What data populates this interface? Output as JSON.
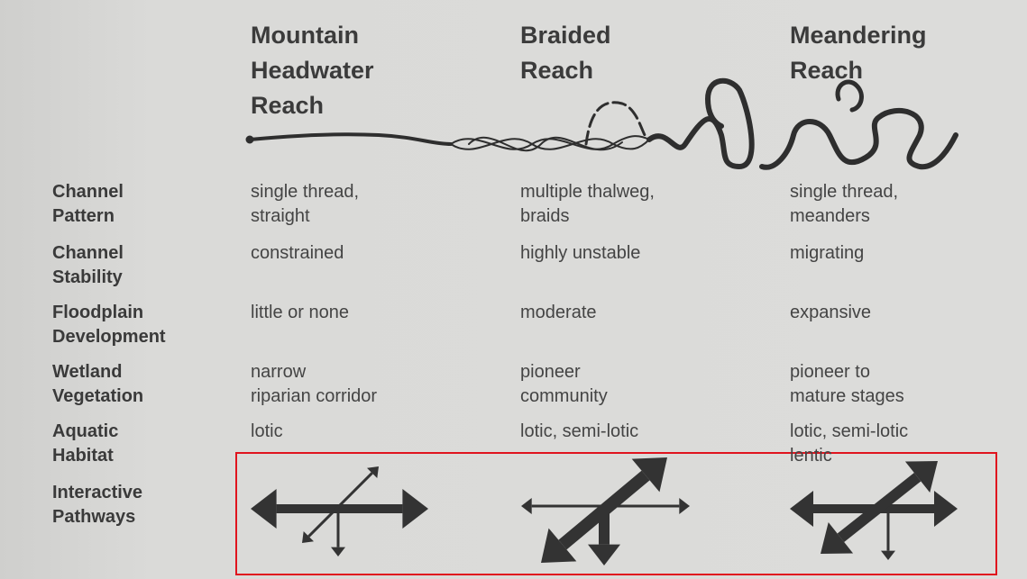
{
  "columns": [
    {
      "title": [
        "Mountain",
        "Headwater",
        "Reach"
      ]
    },
    {
      "title": [
        "Braided",
        "Reach"
      ]
    },
    {
      "title": [
        "Meandering",
        "Reach"
      ]
    }
  ],
  "rows": [
    {
      "label": [
        "Channel",
        "Pattern"
      ],
      "cells": [
        [
          "single thread,",
          "straight"
        ],
        [
          "multiple thalweg,",
          "braids"
        ],
        [
          "single thread,",
          "meanders"
        ]
      ]
    },
    {
      "label": [
        "Channel",
        "Stability"
      ],
      "cells": [
        [
          "constrained"
        ],
        [
          "highly unstable"
        ],
        [
          "migrating"
        ]
      ]
    },
    {
      "label": [
        "Floodplain",
        "Development"
      ],
      "cells": [
        [
          "little or none"
        ],
        [
          "moderate"
        ],
        [
          "expansive"
        ]
      ]
    },
    {
      "label": [
        "Wetland",
        "Vegetation"
      ],
      "cells": [
        [
          "narrow",
          "riparian corridor"
        ],
        [
          "pioneer",
          "community"
        ],
        [
          "pioneer to",
          "mature stages"
        ]
      ]
    },
    {
      "label": [
        "Aquatic",
        "Habitat"
      ],
      "cells": [
        [
          "lotic"
        ],
        [
          "lotic, semi-lotic"
        ],
        [
          "lotic, semi-lotic",
          "lentic"
        ]
      ]
    },
    {
      "label": [
        "Interactive",
        "Pathways"
      ],
      "cells": []
    }
  ]
}
